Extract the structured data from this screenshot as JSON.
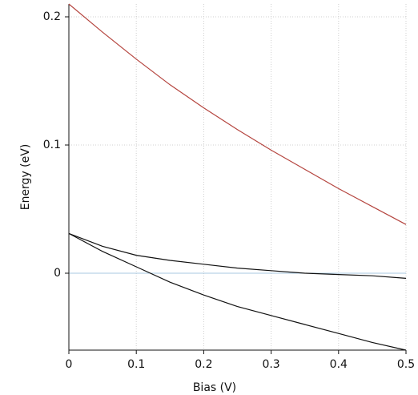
{
  "chart_data": {
    "type": "line",
    "xlabel": "Bias (V)",
    "ylabel": "Energy (eV)",
    "x": [
      0,
      0.05,
      0.1,
      0.15,
      0.2,
      0.25,
      0.3,
      0.35,
      0.4,
      0.45,
      0.5
    ],
    "series": [
      {
        "color": "#b5453f",
        "values": [
          0.21,
          0.188,
          0.167,
          0.147,
          0.129,
          0.112,
          0.096,
          0.081,
          0.066,
          0.052,
          0.038
        ]
      },
      {
        "color": "#111111",
        "values": [
          0.031,
          0.021,
          0.014,
          0.01,
          0.007,
          0.004,
          0.002,
          0.0,
          -0.001,
          -0.002,
          -0.004
        ]
      },
      {
        "color": "#111111",
        "values": [
          0.031,
          0.017,
          0.005,
          -0.007,
          -0.017,
          -0.026,
          -0.033,
          -0.04,
          -0.047,
          -0.054,
          -0.06
        ]
      }
    ],
    "xlim": [
      0,
      0.5
    ],
    "ylim": [
      -0.06,
      0.21
    ],
    "xticks": [
      0,
      0.1,
      0.2,
      0.3,
      0.4,
      0.5
    ],
    "yticks": [
      0,
      0.1,
      0.2
    ],
    "grid": true,
    "zero_line_color": "#a8c8e0"
  }
}
